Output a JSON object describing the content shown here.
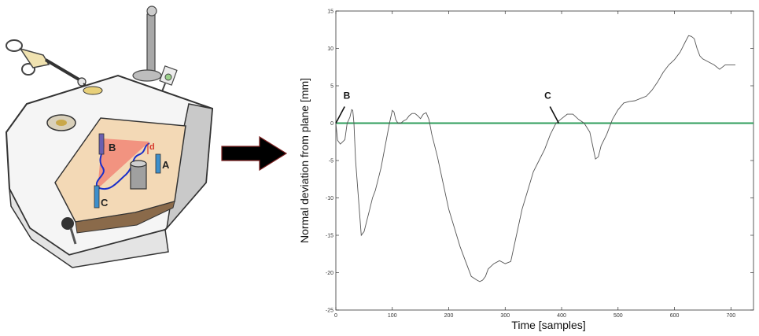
{
  "illustration": {
    "pin_labels": [
      "A",
      "B",
      "C"
    ],
    "distance_label": "d",
    "colors": {
      "platform": "#f3d9b6",
      "plane": "#f27b6e",
      "path": "#1a2fc9",
      "pin": "#3d8fcc",
      "pin_b": "#6b5fb0"
    }
  },
  "arrow_icon": "right-arrow-icon",
  "chart_data": {
    "type": "line",
    "xlabel": "Time [samples]",
    "ylabel": "Normal deviation from plane [mm]",
    "xlim": [
      0,
      740
    ],
    "ylim": [
      -25,
      15
    ],
    "xticks": [
      0,
      100,
      200,
      300,
      400,
      500,
      600,
      700
    ],
    "yticks": [
      -25,
      -20,
      -15,
      -10,
      -5,
      0,
      5,
      10,
      15
    ],
    "grid": false,
    "reference_line": {
      "y": 0,
      "color": "#2e9e5b"
    },
    "series": [
      {
        "color": "#555555",
        "x": [
          0,
          3,
          8,
          12,
          16,
          20,
          25,
          28,
          30,
          32,
          35,
          40,
          45,
          50,
          55,
          60,
          65,
          70,
          75,
          80,
          85,
          90,
          95,
          100,
          103,
          106,
          110,
          115,
          120,
          125,
          130,
          135,
          140,
          145,
          150,
          155,
          160,
          165,
          170,
          180,
          190,
          200,
          210,
          220,
          230,
          240,
          250,
          255,
          260,
          265,
          270,
          280,
          290,
          300,
          310,
          320,
          330,
          340,
          350,
          360,
          370,
          380,
          390,
          400,
          410,
          420,
          430,
          440,
          450,
          455,
          460,
          465,
          470,
          480,
          490,
          500,
          510,
          520,
          530,
          540,
          550,
          560,
          570,
          580,
          590,
          600,
          610,
          620,
          625,
          630,
          635,
          640,
          645,
          650,
          660,
          670,
          680,
          690,
          700,
          705,
          708
        ],
        "y": [
          0,
          -2.3,
          -2.8,
          -2.5,
          -2.2,
          0,
          0.8,
          1.8,
          1.7,
          0,
          -5,
          -10,
          -15,
          -14.5,
          -13,
          -11.5,
          -10,
          -9,
          -7.5,
          -6,
          -4,
          -2,
          0,
          1.7,
          1.5,
          0.5,
          0,
          0,
          0.3,
          0.5,
          1,
          1.3,
          1.3,
          1,
          0.6,
          1.2,
          1.4,
          0.5,
          -1.5,
          -4.5,
          -8,
          -11.5,
          -14,
          -16.5,
          -18.5,
          -20.5,
          -21,
          -21.2,
          -21,
          -20.5,
          -19.5,
          -18.8,
          -18.4,
          -18.8,
          -18.5,
          -15,
          -11.5,
          -9,
          -6.5,
          -5,
          -3.5,
          -1.5,
          0,
          0.6,
          1.2,
          1.2,
          0.5,
          0,
          -1.2,
          -3,
          -4.8,
          -4.5,
          -3,
          -1.5,
          0.5,
          1.8,
          2.7,
          2.9,
          3,
          3.3,
          3.6,
          4.4,
          5.5,
          6.8,
          7.8,
          8.5,
          9.5,
          11,
          11.7,
          11.6,
          11.3,
          10,
          9,
          8.6,
          8.2,
          7.8,
          7.2,
          7.8,
          7.8,
          7.8,
          7.8
        ]
      }
    ],
    "annotations": [
      {
        "text": "B",
        "x": 0,
        "y": 0
      },
      {
        "text": "C",
        "x": 395,
        "y": 0
      }
    ]
  }
}
